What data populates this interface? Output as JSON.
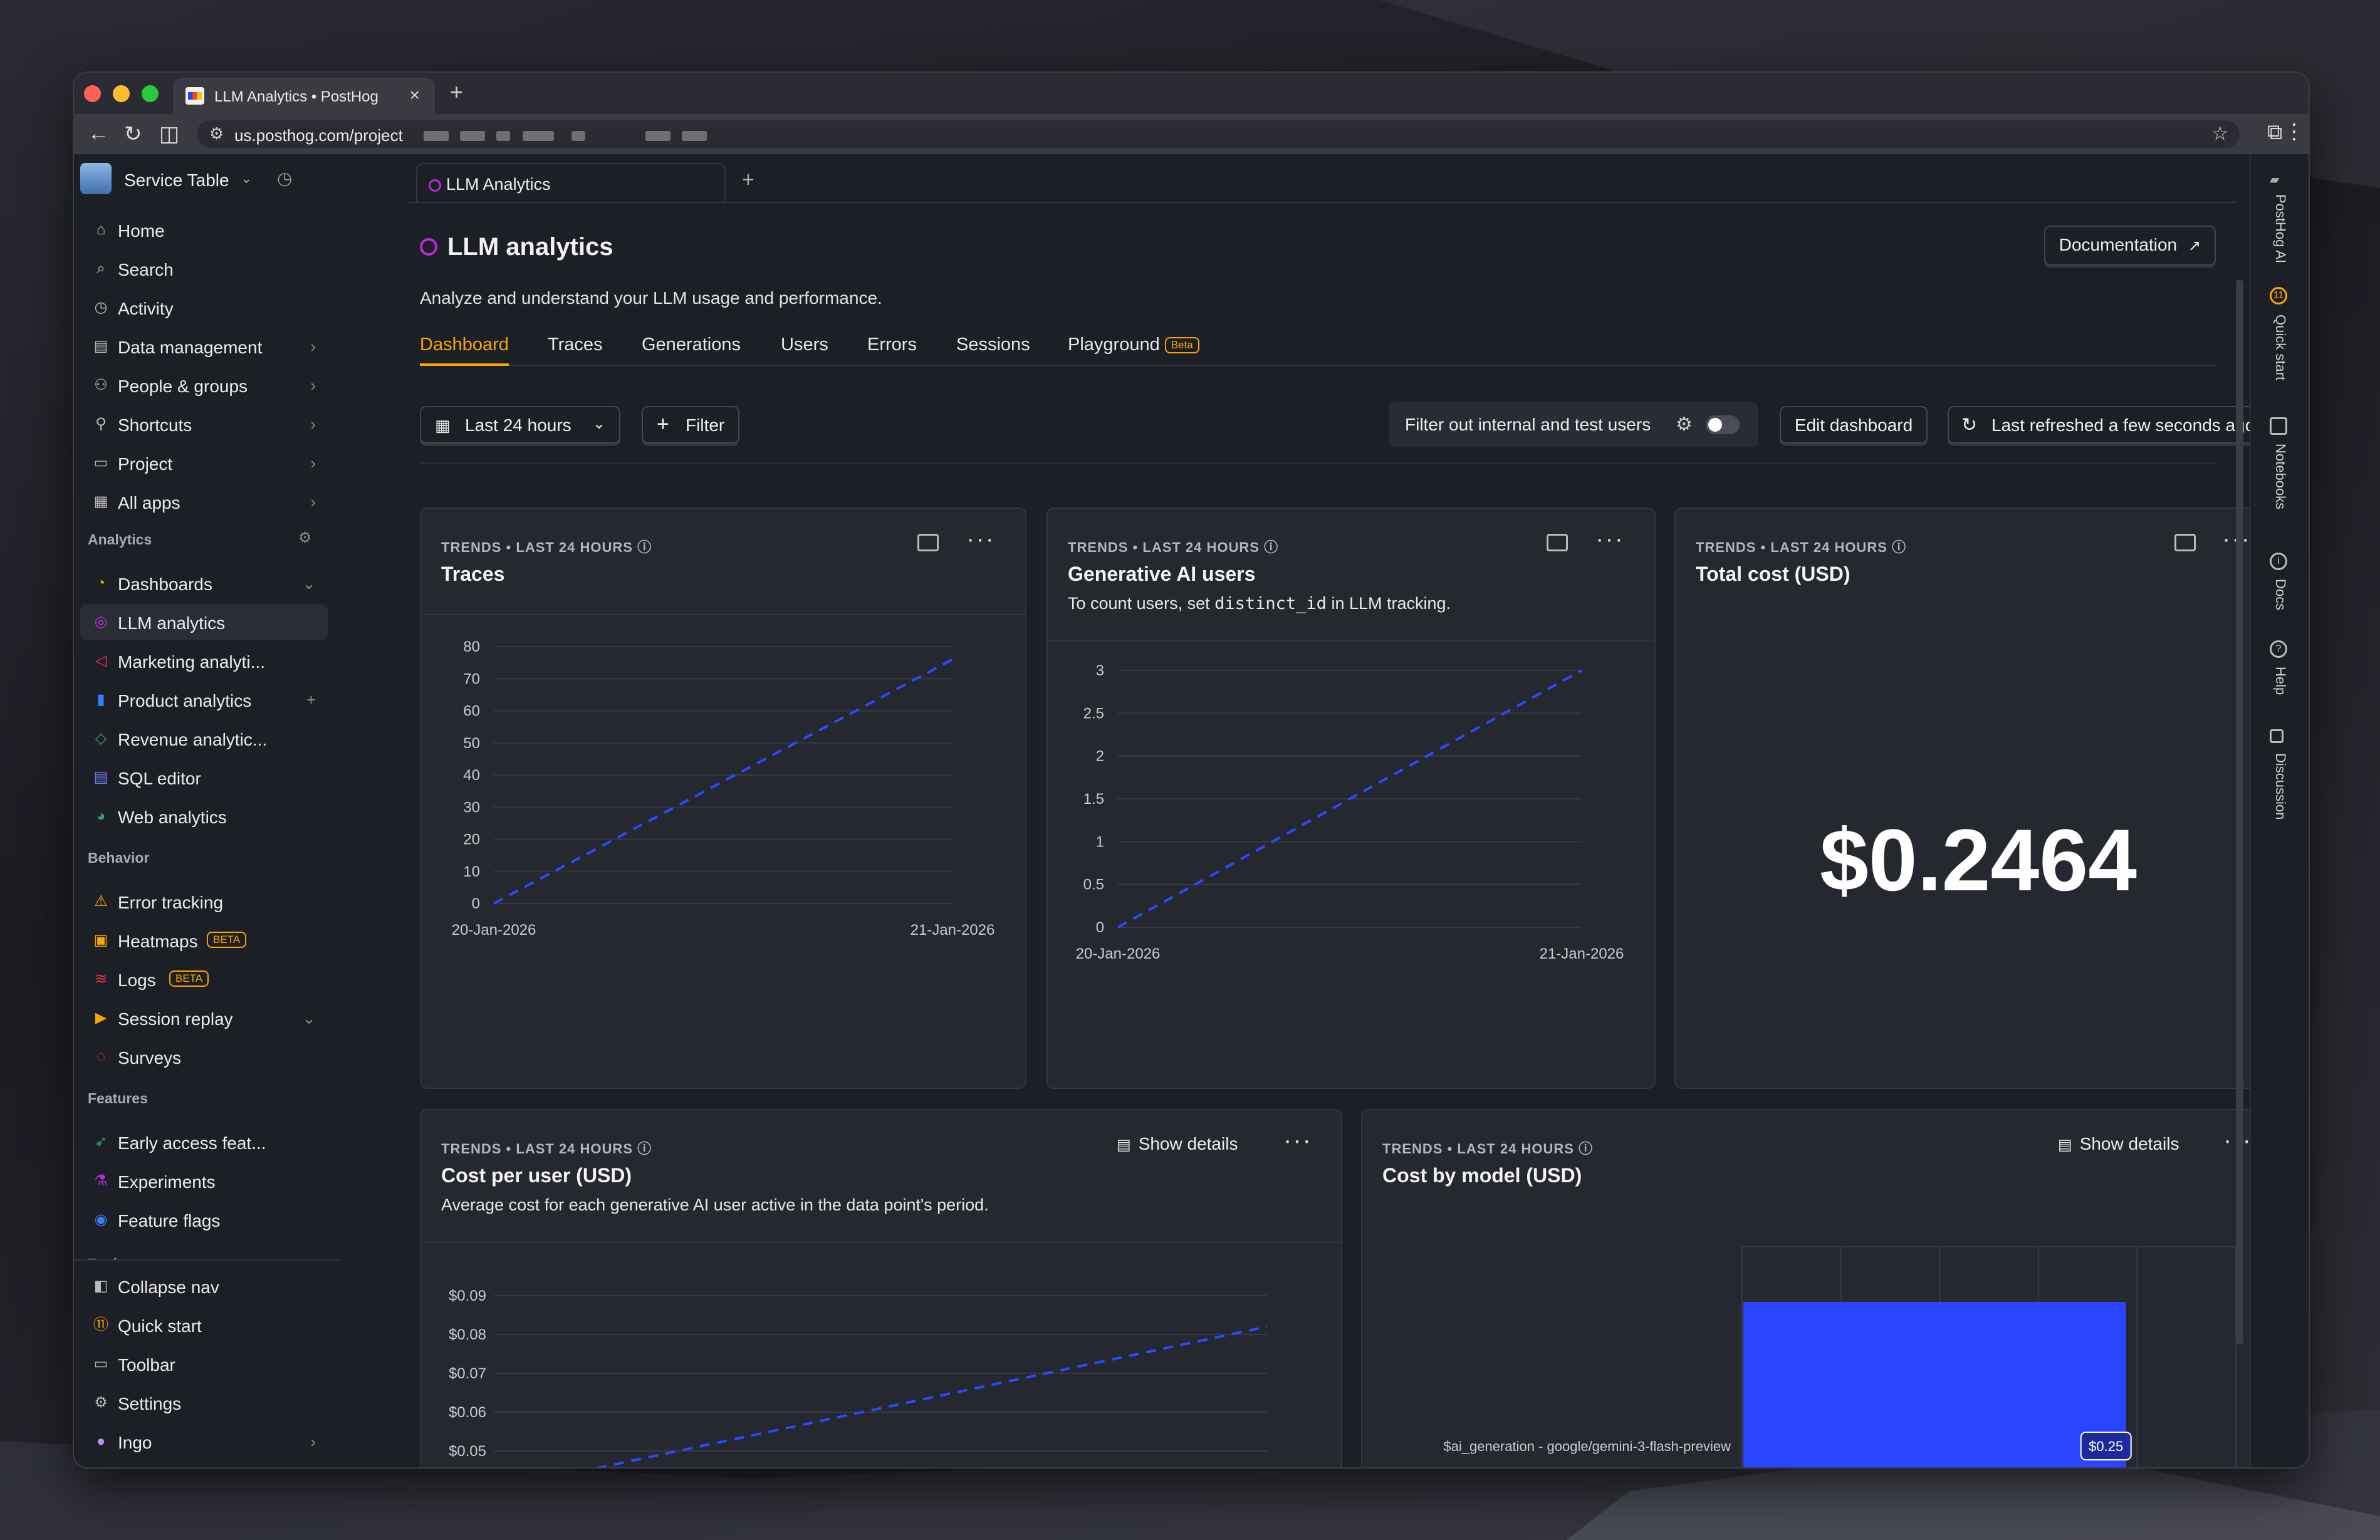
{
  "browser": {
    "tab_title": "LLM Analytics • PostHog",
    "url": "us.posthog.com/project"
  },
  "sidebar": {
    "project_name": "Service Table",
    "items": [
      {
        "label": "Home",
        "icon": "home-icon",
        "chevron": false
      },
      {
        "label": "Search",
        "icon": "search-icon",
        "chevron": false
      },
      {
        "label": "Activity",
        "icon": "clock-icon",
        "chevron": false
      },
      {
        "label": "Data management",
        "icon": "database-icon",
        "chevron": true
      },
      {
        "label": "People & groups",
        "icon": "people-icon",
        "chevron": true
      },
      {
        "label": "Shortcuts",
        "icon": "pin-icon",
        "chevron": true
      },
      {
        "label": "Project",
        "icon": "folder-icon",
        "chevron": true
      },
      {
        "label": "All apps",
        "icon": "grid-icon",
        "chevron": true
      }
    ],
    "analytics_section": "Analytics",
    "analytics_items": [
      {
        "label": "Dashboards",
        "icon": "dashboard-icon",
        "chevron": "down"
      },
      {
        "label": "LLM analytics",
        "icon": "llm-icon",
        "active": true
      },
      {
        "label": "Marketing analyti...",
        "icon": "megaphone-icon"
      },
      {
        "label": "Product analytics",
        "icon": "bar-chart-icon",
        "plus": true
      },
      {
        "label": "Revenue analytic...",
        "icon": "revenue-icon"
      },
      {
        "label": "SQL editor",
        "icon": "sql-icon"
      },
      {
        "label": "Web analytics",
        "icon": "web-analytics-icon"
      }
    ],
    "behavior_section": "Behavior",
    "behavior_items": [
      {
        "label": "Error tracking",
        "icon": "warning-icon"
      },
      {
        "label": "Heatmaps",
        "icon": "heatmap-icon",
        "badge": "BETA"
      },
      {
        "label": "Logs",
        "icon": "logs-icon",
        "badge": "BETA"
      },
      {
        "label": "Session replay",
        "icon": "replay-icon",
        "chevron": "down"
      },
      {
        "label": "Surveys",
        "icon": "survey-icon"
      }
    ],
    "features_section": "Features",
    "features_items": [
      {
        "label": "Early access feat...",
        "icon": "rocket-icon"
      },
      {
        "label": "Experiments",
        "icon": "flask-icon"
      },
      {
        "label": "Feature flags",
        "icon": "toggle-icon"
      }
    ],
    "tools_section": "Tools",
    "bottom_items": [
      {
        "label": "Collapse nav",
        "icon": "collapse-icon"
      },
      {
        "label": "Quick start",
        "icon": "quickstart-icon"
      },
      {
        "label": "Toolbar",
        "icon": "toolbar-icon"
      },
      {
        "label": "Settings",
        "icon": "gear-icon"
      },
      {
        "label": "Ingo",
        "icon": "avatar-icon",
        "chevron": true
      }
    ]
  },
  "page_tab": {
    "label": "LLM Analytics"
  },
  "header": {
    "title": "LLM analytics",
    "subtitle": "Analyze and understand your LLM usage and performance.",
    "documentation": "Documentation"
  },
  "tabs": [
    "Dashboard",
    "Traces",
    "Generations",
    "Users",
    "Errors",
    "Sessions",
    "Playground"
  ],
  "playground_badge": "Beta",
  "toolbar": {
    "date_range": "Last 24 hours",
    "filter": "Filter",
    "filter_internal": "Filter out internal and test users",
    "edit_dashboard": "Edit dashboard",
    "last_refreshed": "Last refreshed a few seconds ago"
  },
  "cards": {
    "traces": {
      "meta": "TRENDS • LAST 24 HOURS",
      "title": "Traces"
    },
    "gen_users": {
      "meta": "TRENDS • LAST 24 HOURS",
      "title": "Generative AI users",
      "desc_pre": "To count users, set ",
      "desc_code": "distinct_id",
      "desc_post": " in LLM tracking."
    },
    "total_cost": {
      "meta": "TRENDS • LAST 24 HOURS",
      "title": "Total cost (USD)",
      "value": "$0.2464"
    },
    "cost_per_user": {
      "meta": "TRENDS • LAST 24 HOURS",
      "title": "Cost per user (USD)",
      "desc": "Average cost for each generative AI user active in the data point's period.",
      "show_details": "Show details"
    },
    "cost_by_model": {
      "meta": "TRENDS • LAST 24 HOURS",
      "title": "Cost by model (USD)",
      "show_details": "Show details"
    }
  },
  "chart_data": [
    {
      "type": "line",
      "title": "Traces",
      "x": [
        "20-Jan-2026",
        "21-Jan-2026"
      ],
      "series": [
        {
          "values": [
            0,
            76
          ]
        }
      ],
      "yticks": [
        "0",
        "10",
        "20",
        "30",
        "40",
        "50",
        "60",
        "70",
        "80"
      ],
      "ylim": [
        0,
        80
      ]
    },
    {
      "type": "line",
      "title": "Generative AI users",
      "x": [
        "20-Jan-2026",
        "21-Jan-2026"
      ],
      "series": [
        {
          "values": [
            0,
            3
          ]
        }
      ],
      "yticks": [
        "0",
        "0.5",
        "1",
        "1.5",
        "2",
        "2.5",
        "3"
      ],
      "ylim": [
        0,
        3
      ]
    },
    {
      "type": "line",
      "title": "Cost per user (USD)",
      "yticks": [
        "$0.05",
        "$0.06",
        "$0.07",
        "$0.08",
        "$0.09"
      ],
      "series": [
        {
          "values": [
            0.04,
            0.082
          ]
        }
      ]
    },
    {
      "type": "bar",
      "title": "Cost by model (USD)",
      "categories": [
        "$ai_generation - google/gemini-3-flash-preview"
      ],
      "values": [
        0.25
      ],
      "data_label": "$0.25"
    }
  ],
  "rail": [
    "PostHog AI",
    "Quick start",
    "Notebooks",
    "Docs",
    "Help",
    "Discussion"
  ],
  "rail_quickstart_count": "11",
  "colors": {
    "accent": "#f7a501",
    "series": "#2f47ff",
    "bar": "#2945ff",
    "llm_purple": "#b62ad9"
  }
}
